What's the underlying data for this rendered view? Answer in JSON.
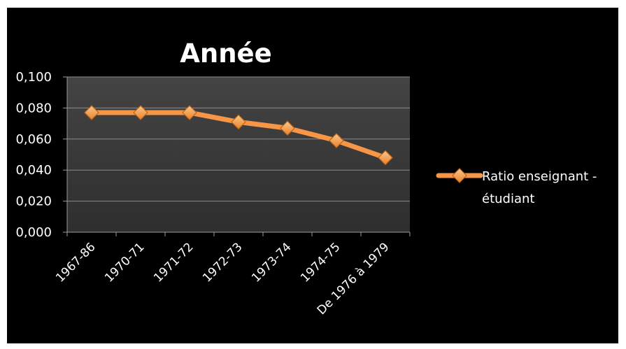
{
  "chart_data": {
    "type": "line",
    "title": "Année",
    "categories": [
      "1967-86",
      "1970-71",
      "1971-72",
      "1972-73",
      "1973-74",
      "1974-75",
      "De 1976 à 1979"
    ],
    "series": [
      {
        "name": "Ratio enseignant - étudiant",
        "values": [
          0.077,
          0.077,
          0.077,
          0.071,
          0.067,
          0.059,
          0.048
        ],
        "color": "#f79646"
      }
    ],
    "yticks": [
      "0,000",
      "0,020",
      "0,040",
      "0,060",
      "0,080",
      "0,100"
    ],
    "ylim": [
      0,
      0.1
    ],
    "grid": true,
    "legend": {
      "position": "right",
      "lines": [
        "Ratio enseignant -",
        "étudiant"
      ]
    },
    "colors": {
      "background": "#000000",
      "plot_area": "#3a3a3a",
      "gridline": "#8c8c8c",
      "text": "#ffffff",
      "marker_fill": "#f7a95a",
      "marker_stroke": "#c06414"
    }
  }
}
